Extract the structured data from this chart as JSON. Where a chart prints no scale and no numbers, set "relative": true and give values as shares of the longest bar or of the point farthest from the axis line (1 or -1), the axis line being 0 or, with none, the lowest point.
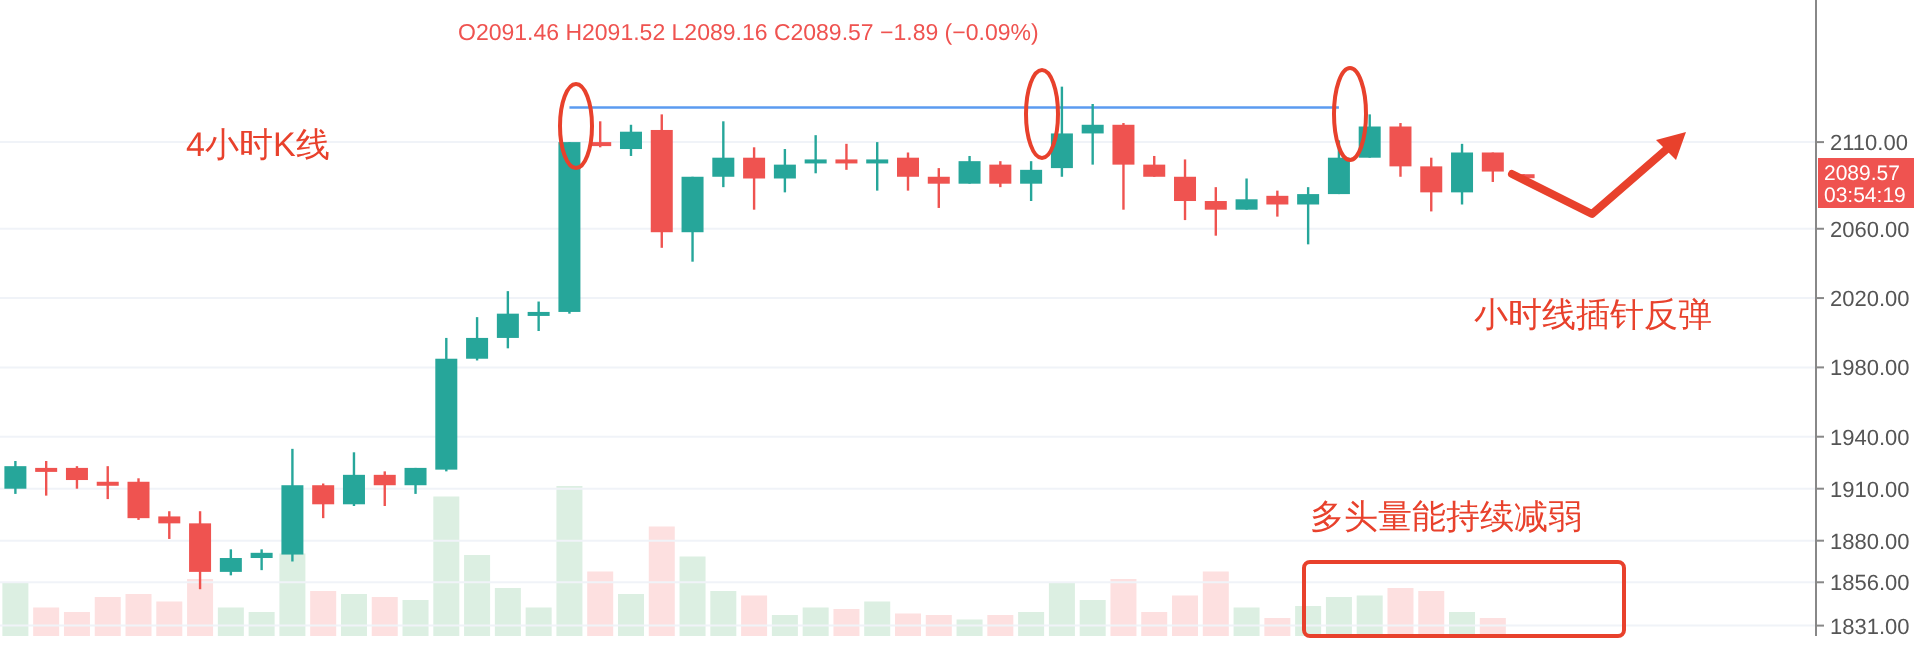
{
  "chart_data": [
    {
      "type": "candlestick",
      "categories": [
        null,
        null,
        null,
        null,
        null,
        null,
        null,
        null,
        null,
        null,
        null,
        null,
        null,
        null,
        null,
        null,
        null,
        null,
        null,
        null,
        null,
        null,
        null,
        null,
        null,
        null,
        null,
        null,
        null,
        null,
        null,
        null,
        null,
        null,
        null,
        null,
        null,
        null,
        null,
        null,
        null,
        null,
        null,
        null,
        null,
        null,
        null,
        null,
        null,
        null,
        null,
        null,
        null,
        null,
        null,
        null,
        null,
        null,
        null
      ],
      "ohlc": [
        [
          1910,
          1926,
          1907,
          1923
        ],
        [
          1922,
          1926,
          1906,
          1921
        ],
        [
          1922,
          1923,
          1910,
          1915
        ],
        [
          1914,
          1923,
          1904,
          1913
        ],
        [
          1914,
          1916,
          1892,
          1893
        ],
        [
          1894,
          1897,
          1881,
          1890
        ],
        [
          1890,
          1897,
          1852,
          1862
        ],
        [
          1862,
          1875,
          1860,
          1870
        ],
        [
          1870,
          1875,
          1863,
          1873
        ],
        [
          1872,
          1933,
          1868,
          1912
        ],
        [
          1912,
          1913,
          1893,
          1901
        ],
        [
          1901,
          1931,
          1900,
          1918
        ],
        [
          1918,
          1920,
          1900,
          1912
        ],
        [
          1912,
          1922,
          1907,
          1922
        ],
        [
          1921,
          1997,
          1920,
          1985
        ],
        [
          1985,
          2009,
          1984,
          1997
        ],
        [
          1997,
          2024,
          1991,
          2011
        ],
        [
          2011,
          2018,
          2001,
          2012
        ],
        [
          2012,
          2110,
          2011,
          2110
        ],
        [
          2110,
          2122,
          2107,
          2109
        ],
        [
          2106,
          2120,
          2102,
          2116
        ],
        [
          2117,
          2126,
          2049,
          2058
        ],
        [
          2058,
          2090,
          2041,
          2090
        ],
        [
          2090,
          2122,
          2084,
          2101
        ],
        [
          2101,
          2107,
          2071,
          2089
        ],
        [
          2089,
          2106,
          2081,
          2097
        ],
        [
          2099,
          2114,
          2092,
          2100
        ],
        [
          2100,
          2109,
          2094,
          2099
        ],
        [
          2099,
          2110,
          2082,
          2100
        ],
        [
          2101,
          2104,
          2082,
          2090
        ],
        [
          2090,
          2095,
          2072,
          2086
        ],
        [
          2086,
          2102,
          2086,
          2099
        ],
        [
          2097,
          2099,
          2084,
          2086
        ],
        [
          2086,
          2099,
          2076,
          2094
        ],
        [
          2095,
          2142,
          2090,
          2115
        ],
        [
          2115,
          2132,
          2097,
          2120
        ],
        [
          2120,
          2121,
          2071,
          2097
        ],
        [
          2097,
          2102,
          2090,
          2090
        ],
        [
          2090,
          2100,
          2065,
          2076
        ],
        [
          2076,
          2084,
          2056,
          2071
        ],
        [
          2071,
          2089,
          2071,
          2077
        ],
        [
          2079,
          2082,
          2067,
          2074
        ],
        [
          2074,
          2084,
          2051,
          2080
        ],
        [
          2080,
          2111,
          2080,
          2101
        ],
        [
          2101,
          2126,
          2101,
          2119
        ],
        [
          2119,
          2121,
          2090,
          2096
        ],
        [
          2096,
          2101,
          2070,
          2081
        ],
        [
          2081,
          2109,
          2074,
          2104
        ],
        [
          2104,
          2104,
          2087,
          2093
        ],
        [
          2091.46,
          2091.52,
          2089.16,
          2089.57
        ],
        null,
        null,
        null,
        null,
        null,
        null,
        null,
        null,
        null
      ],
      "colors": [
        "#26a69a",
        "#ef5350",
        "#ef5350",
        "#ef5350",
        "#ef5350",
        "#ef5350",
        "#ef5350",
        "#26a69a",
        "#26a69a",
        "#26a69a",
        "#ef5350",
        "#26a69a",
        "#ef5350",
        "#26a69a",
        "#26a69a",
        "#26a69a",
        "#26a69a",
        "#26a69a",
        "#26a69a",
        "#ef5350",
        "#26a69a",
        "#ef5350",
        "#26a69a",
        "#26a69a",
        "#ef5350",
        "#26a69a",
        "#26a69a",
        "#ef5350",
        "#26a69a",
        "#ef5350",
        "#ef5350",
        "#26a69a",
        "#ef5350",
        "#26a69a",
        "#26a69a",
        "#26a69a",
        "#ef5350",
        "#ef5350",
        "#ef5350",
        "#ef5350",
        "#26a69a",
        "#ef5350",
        "#26a69a",
        "#26a69a",
        "#26a69a",
        "#ef5350",
        "#ef5350",
        "#26a69a",
        "#ef5350",
        "#ef5350",
        null,
        null,
        null,
        null,
        null,
        null,
        null,
        null,
        null
      ],
      "ylim": [
        1825,
        2192
      ],
      "yticks": [
        {
          "value": 2110,
          "label": "2110.00"
        },
        {
          "value": 2060,
          "label": "2060.00"
        },
        {
          "value": 2020,
          "label": "2020.00"
        },
        {
          "value": 1980,
          "label": "1980.00"
        },
        {
          "value": 1940,
          "label": "1940.00"
        },
        {
          "value": 1910,
          "label": "1910.00"
        },
        {
          "value": 1880,
          "label": "1880.00"
        },
        {
          "value": 1856,
          "label": "1856.00"
        },
        {
          "value": 1831,
          "label": "1831.00"
        }
      ],
      "grid": "y",
      "tick_labels": "y",
      "ref_lines": [
        {
          "axis": "y",
          "value": 2130,
          "color": "#5b9bf0"
        }
      ],
      "annotations": [
        "O2091.46 H2091.52 L2089.16 C2089.57 −1.89 (−0.09%)",
        "4小时K线",
        "小时线插针反弹",
        "2089.57",
        "03:54:19"
      ]
    },
    {
      "type": "bar",
      "relative": true,
      "categories": [
        null,
        null,
        null,
        null,
        null,
        null,
        null,
        null,
        null,
        null,
        null,
        null,
        null,
        null,
        null,
        null,
        null,
        null,
        null,
        null,
        null,
        null,
        null,
        null,
        null,
        null,
        null,
        null,
        null,
        null,
        null,
        null,
        null,
        null,
        null,
        null,
        null,
        null,
        null,
        null,
        null,
        null,
        null,
        null,
        null,
        null,
        null,
        null,
        null,
        null,
        null,
        null,
        null,
        null,
        null,
        null,
        null,
        null,
        null
      ],
      "values": [
        0.36,
        0.19,
        0.16,
        0.26,
        0.28,
        0.23,
        0.38,
        0.19,
        0.16,
        0.55,
        0.3,
        0.28,
        0.26,
        0.24,
        0.93,
        0.54,
        0.32,
        0.19,
        1,
        0.43,
        0.28,
        0.73,
        0.53,
        0.3,
        0.27,
        0.14,
        0.19,
        0.18,
        0.23,
        0.15,
        0.14,
        0.11,
        0.14,
        0.16,
        0.36,
        0.24,
        0.38,
        0.16,
        0.27,
        0.43,
        0.19,
        0.12,
        0.2,
        0.26,
        0.27,
        0.32,
        0.3,
        0.16,
        0.12,
        null,
        null,
        null,
        null,
        null,
        null,
        null,
        null,
        null,
        null
      ],
      "colors": [
        "#dcefe2",
        "#fde0e0",
        "#fde0e0",
        "#fde0e0",
        "#fde0e0",
        "#fde0e0",
        "#fde0e0",
        "#dcefe2",
        "#dcefe2",
        "#dcefe2",
        "#fde0e0",
        "#dcefe2",
        "#fde0e0",
        "#dcefe2",
        "#dcefe2",
        "#dcefe2",
        "#dcefe2",
        "#dcefe2",
        "#dcefe2",
        "#fde0e0",
        "#dcefe2",
        "#fde0e0",
        "#dcefe2",
        "#dcefe2",
        "#fde0e0",
        "#dcefe2",
        "#dcefe2",
        "#fde0e0",
        "#dcefe2",
        "#fde0e0",
        "#fde0e0",
        "#dcefe2",
        "#fde0e0",
        "#dcefe2",
        "#dcefe2",
        "#dcefe2",
        "#fde0e0",
        "#fde0e0",
        "#fde0e0",
        "#fde0e0",
        "#dcefe2",
        "#fde0e0",
        "#dcefe2",
        "#dcefe2",
        "#dcefe2",
        "#fde0e0",
        "#fde0e0",
        "#dcefe2",
        "#fde0e0",
        null,
        null,
        null,
        null,
        null,
        null,
        null,
        null,
        null,
        null
      ],
      "annotations": [
        "多头量能持续减弱"
      ]
    }
  ]
}
